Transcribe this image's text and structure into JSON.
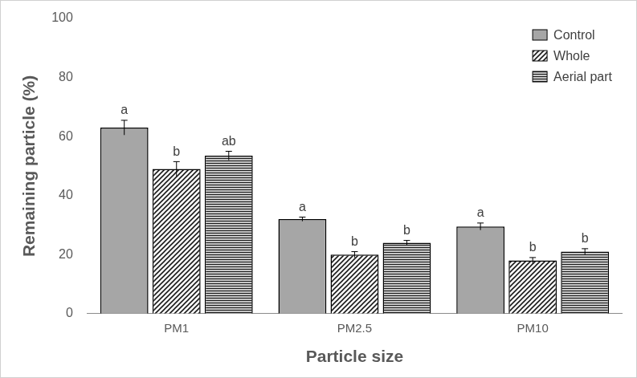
{
  "chart_data": {
    "type": "bar",
    "x_label": "Particle size",
    "y_label": "Remaining particle (%)",
    "categories": [
      "PM1",
      "PM2.5",
      "PM10"
    ],
    "series": [
      {
        "name": "Control",
        "color": "#a6a6a6",
        "values": [
          63,
          32,
          29.5
        ],
        "errors": [
          2.5,
          0.7,
          1.2
        ],
        "annotations": [
          "a",
          "a",
          "a"
        ]
      },
      {
        "name": "Whole",
        "color": "#1a1a1a",
        "values": [
          49,
          20,
          18
        ],
        "errors": [
          2.5,
          1,
          1
        ],
        "annotations": [
          "b",
          "b",
          "b"
        ]
      },
      {
        "name": "Aerial part",
        "color": "#1a1a1a",
        "values": [
          53.5,
          24,
          21
        ],
        "errors": [
          1.5,
          0.8,
          1
        ],
        "annotations": [
          "ab",
          "b",
          "b"
        ]
      }
    ],
    "ylim": [
      0,
      100
    ],
    "yticks": [
      0,
      20,
      40,
      60,
      80,
      100
    ],
    "grid": false,
    "legend": "upper right"
  }
}
